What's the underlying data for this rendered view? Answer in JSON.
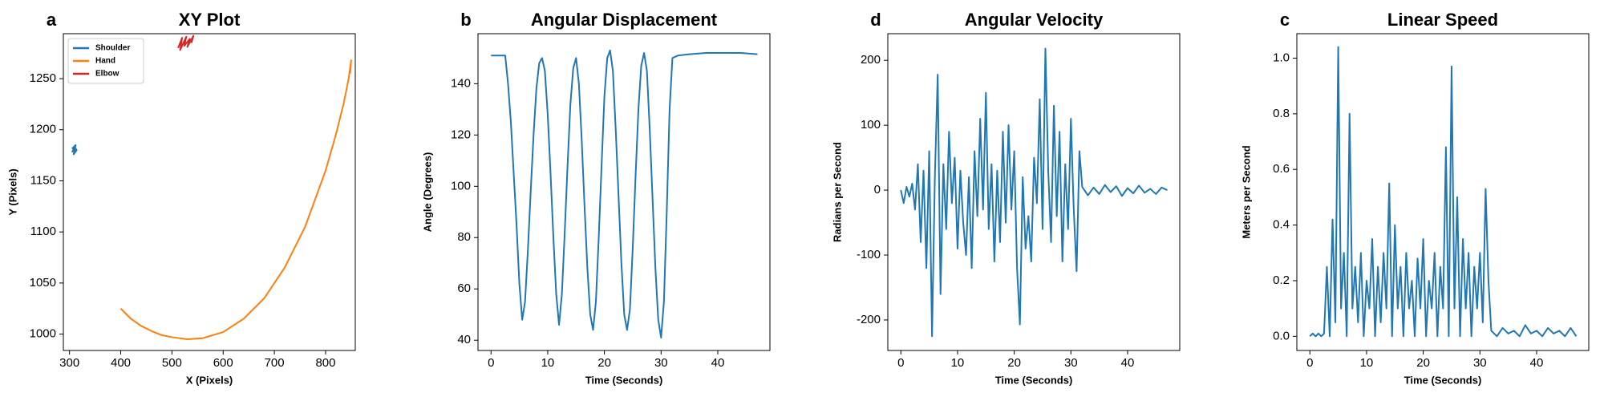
{
  "chart_data": [
    {
      "type": "line",
      "panel": "a",
      "title": "XY Plot",
      "x_label": "X (Pixels)",
      "y_label": "Y (Pixels)",
      "legend": "upper left",
      "xlim": [
        288,
        858
      ],
      "xticks": [
        300,
        400,
        500,
        600,
        700,
        800
      ],
      "ylim": [
        984,
        1294
      ],
      "yticks": [
        1000,
        1050,
        1100,
        1150,
        1200,
        1250
      ],
      "series": [
        {
          "name": "Shoulder",
          "color": "#1f77b4",
          "x": [
            305,
            310,
            314,
            308,
            312,
            306,
            311
          ],
          "values": [
            1178,
            1183,
            1180,
            1176,
            1185,
            1182,
            1179
          ]
        },
        {
          "name": "Hand",
          "color": "#ff7f0e",
          "x": [
            400,
            420,
            440,
            460,
            480,
            500,
            530,
            560,
            600,
            640,
            680,
            720,
            760,
            800,
            820,
            835,
            845,
            850,
            848
          ],
          "values": [
            1025,
            1015,
            1008,
            1003,
            999,
            997,
            995,
            996,
            1002,
            1015,
            1035,
            1065,
            1105,
            1160,
            1195,
            1225,
            1250,
            1268,
            1255
          ]
        },
        {
          "name": "Elbow",
          "color": "#d62728",
          "x": [
            512,
            520,
            516,
            528,
            524,
            535,
            530,
            542,
            538
          ],
          "values": [
            1280,
            1290,
            1278,
            1291,
            1282,
            1289,
            1281,
            1292,
            1285
          ]
        }
      ]
    },
    {
      "type": "line",
      "panel": "b",
      "title": "Angular Displacement",
      "x_label": "Time (Seconds)",
      "y_label": "Angle (Degrees)",
      "xlim": [
        -2.3,
        49.2
      ],
      "xticks": [
        0,
        10,
        20,
        30,
        40
      ],
      "ylim": [
        36,
        159.5
      ],
      "yticks": [
        40,
        60,
        80,
        100,
        120,
        140
      ],
      "series": [
        {
          "color": "#1f77b4",
          "x": [
            0,
            1,
            2,
            2.5,
            3,
            3.5,
            4,
            4.5,
            5,
            5.5,
            6,
            6.5,
            7,
            7.5,
            8,
            8.5,
            9,
            9.5,
            10,
            10.5,
            11,
            11.5,
            12,
            12.5,
            13,
            13.5,
            14,
            14.5,
            15,
            15.5,
            16,
            16.5,
            17,
            17.5,
            18,
            18.5,
            19,
            19.5,
            20,
            20.5,
            21,
            21.5,
            22,
            22.5,
            23,
            23.5,
            24,
            24.5,
            25,
            25.5,
            26,
            26.5,
            27,
            27.5,
            28,
            28.5,
            29,
            29.5,
            30,
            30.5,
            31,
            31.5,
            32,
            33,
            35,
            38,
            41,
            44,
            47
          ],
          "values": [
            151,
            151,
            151,
            151,
            140,
            125,
            105,
            85,
            62,
            48,
            55,
            75,
            98,
            120,
            138,
            148,
            150,
            145,
            128,
            105,
            80,
            58,
            46,
            58,
            82,
            108,
            132,
            146,
            150,
            140,
            118,
            92,
            68,
            50,
            44,
            55,
            80,
            108,
            135,
            150,
            153,
            145,
            122,
            96,
            70,
            50,
            44,
            52,
            76,
            104,
            130,
            147,
            152,
            145,
            122,
            95,
            68,
            48,
            41,
            55,
            90,
            130,
            150,
            151,
            151.5,
            152,
            152,
            152,
            151.5
          ]
        }
      ]
    },
    {
      "type": "line",
      "panel": "d",
      "title": "Angular Velocity",
      "x_label": "Time (Seconds)",
      "y_label": "Radians per Second",
      "xlim": [
        -2.3,
        49.2
      ],
      "xticks": [
        0,
        10,
        20,
        30,
        40
      ],
      "ylim": [
        -247,
        241
      ],
      "yticks": [
        -200,
        -100,
        0,
        100,
        200
      ],
      "series": [
        {
          "color": "#1f77b4",
          "x": [
            0,
            0.5,
            1,
            1.5,
            2,
            2.5,
            3,
            3.5,
            4,
            4.5,
            5,
            5.5,
            6,
            6.5,
            7,
            7.5,
            8,
            8.5,
            9,
            9.5,
            10,
            10.5,
            11,
            11.5,
            12,
            12.5,
            13,
            13.5,
            14,
            14.5,
            15,
            15.5,
            16,
            16.5,
            17,
            17.5,
            18,
            18.5,
            19,
            19.5,
            20,
            20.5,
            21,
            21.5,
            22,
            22.5,
            23,
            23.5,
            24,
            24.5,
            25,
            25.5,
            26,
            26.5,
            27,
            27.5,
            28,
            28.5,
            29,
            29.5,
            30,
            30.5,
            31,
            31.5,
            32,
            33,
            34,
            35,
            36,
            37,
            38,
            39,
            40,
            41,
            42,
            43,
            44,
            45,
            46,
            47
          ],
          "values": [
            0,
            -20,
            5,
            -10,
            10,
            -30,
            40,
            -80,
            30,
            -120,
            60,
            -225,
            20,
            178,
            -160,
            40,
            -60,
            90,
            -20,
            50,
            -90,
            30,
            -50,
            -100,
            20,
            -120,
            60,
            -40,
            110,
            -30,
            150,
            -60,
            40,
            -110,
            30,
            -80,
            90,
            -50,
            100,
            -30,
            60,
            -120,
            -207,
            20,
            -90,
            -40,
            -110,
            50,
            -20,
            140,
            -60,
            218,
            30,
            -80,
            130,
            -40,
            90,
            -110,
            40,
            -60,
            110,
            -30,
            -125,
            60,
            5,
            -8,
            4,
            -6,
            8,
            -3,
            6,
            -9,
            3,
            -5,
            7,
            -4,
            2,
            -6,
            4,
            0
          ]
        }
      ]
    },
    {
      "type": "line",
      "panel": "c",
      "title": "Linear Speed",
      "x_label": "Time (Seconds)",
      "y_label": "Meters per Second",
      "xlim": [
        -2.3,
        49.2
      ],
      "xticks": [
        0,
        10,
        20,
        30,
        40
      ],
      "ylim": [
        -0.051,
        1.088
      ],
      "yticks": [
        {
          "value": 0,
          "label": "0.0"
        },
        0.2,
        0.4,
        0.6,
        0.8,
        {
          "value": 1,
          "label": "1.0"
        }
      ],
      "series": [
        {
          "color": "#1f77b4",
          "x": [
            0,
            0.5,
            1,
            1.5,
            2,
            2.5,
            3,
            3.5,
            4,
            4.5,
            5,
            5.5,
            6,
            6.5,
            7,
            7.5,
            8,
            8.5,
            9,
            9.5,
            10,
            10.5,
            11,
            11.5,
            12,
            12.5,
            13,
            13.5,
            14,
            14.5,
            15,
            15.5,
            16,
            16.5,
            17,
            17.5,
            18,
            18.5,
            19,
            19.5,
            20,
            20.5,
            21,
            21.5,
            22,
            22.5,
            23,
            23.5,
            24,
            24.5,
            25,
            25.5,
            26,
            26.5,
            27,
            27.5,
            28,
            28.5,
            29,
            29.5,
            30,
            30.5,
            31,
            31.5,
            32,
            33,
            34,
            35,
            36,
            37,
            38,
            39,
            40,
            41,
            42,
            43,
            44,
            45,
            46,
            47
          ],
          "values": [
            0,
            0.01,
            0,
            0.01,
            0,
            0.01,
            0.25,
            0,
            0.42,
            0.05,
            1.04,
            0.1,
            0.3,
            0,
            0.8,
            0.1,
            0.25,
            0.05,
            0.3,
            0,
            0.2,
            0.1,
            0.35,
            0,
            0.25,
            0.05,
            0.3,
            0.1,
            0.55,
            0,
            0.4,
            0.1,
            0.25,
            0,
            0.3,
            0.1,
            0.2,
            0,
            0.28,
            0.1,
            0.35,
            0,
            0.2,
            0.1,
            0.3,
            0,
            0.25,
            0.1,
            0.68,
            0,
            0.97,
            0.1,
            0.5,
            0,
            0.35,
            0.1,
            0.3,
            0,
            0.25,
            0.1,
            0.3,
            0.05,
            0.53,
            0.2,
            0.02,
            0,
            0.03,
            0.01,
            0.02,
            0,
            0.04,
            0.01,
            0.02,
            0,
            0.03,
            0.01,
            0.02,
            0,
            0.03,
            0
          ]
        }
      ]
    }
  ]
}
